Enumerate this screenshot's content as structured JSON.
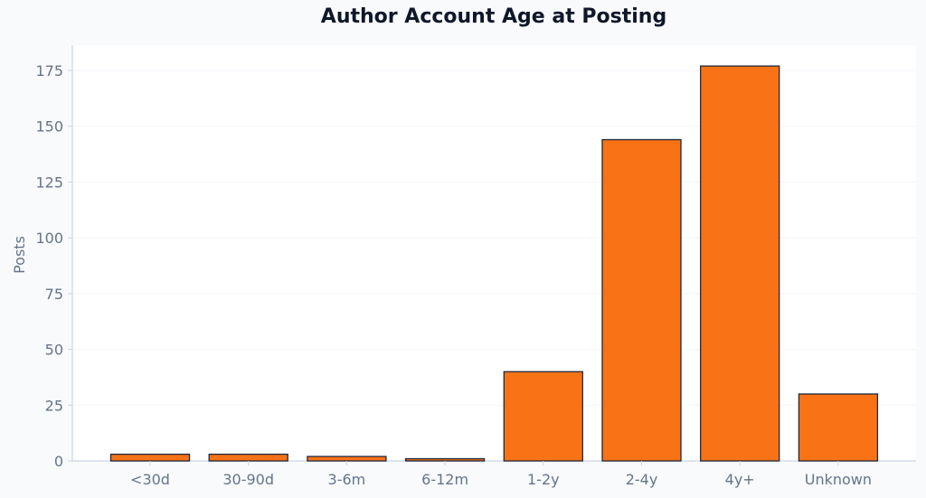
{
  "chart_data": {
    "type": "bar",
    "title": "Author Account Age at Posting",
    "xlabel": "",
    "ylabel": "Posts",
    "categories": [
      "<30d",
      "30-90d",
      "3-6m",
      "6-12m",
      "1-2y",
      "2-4y",
      "4y+",
      "Unknown"
    ],
    "values": [
      3,
      3,
      2,
      1,
      40,
      144,
      177,
      30
    ],
    "ylim": [
      0,
      187
    ],
    "yticks": [
      0,
      25,
      50,
      75,
      100,
      125,
      150,
      175
    ],
    "grid": "y",
    "legend": null,
    "colors": {
      "bar": "#f97316",
      "bar_edge": "#1e293b",
      "grid": "#f1f5f9",
      "axis": "#cbd5e1",
      "text": "#64748b",
      "title": "#0f172a",
      "background": "#f8fafc",
      "plot_bg": "#ffffff"
    }
  }
}
